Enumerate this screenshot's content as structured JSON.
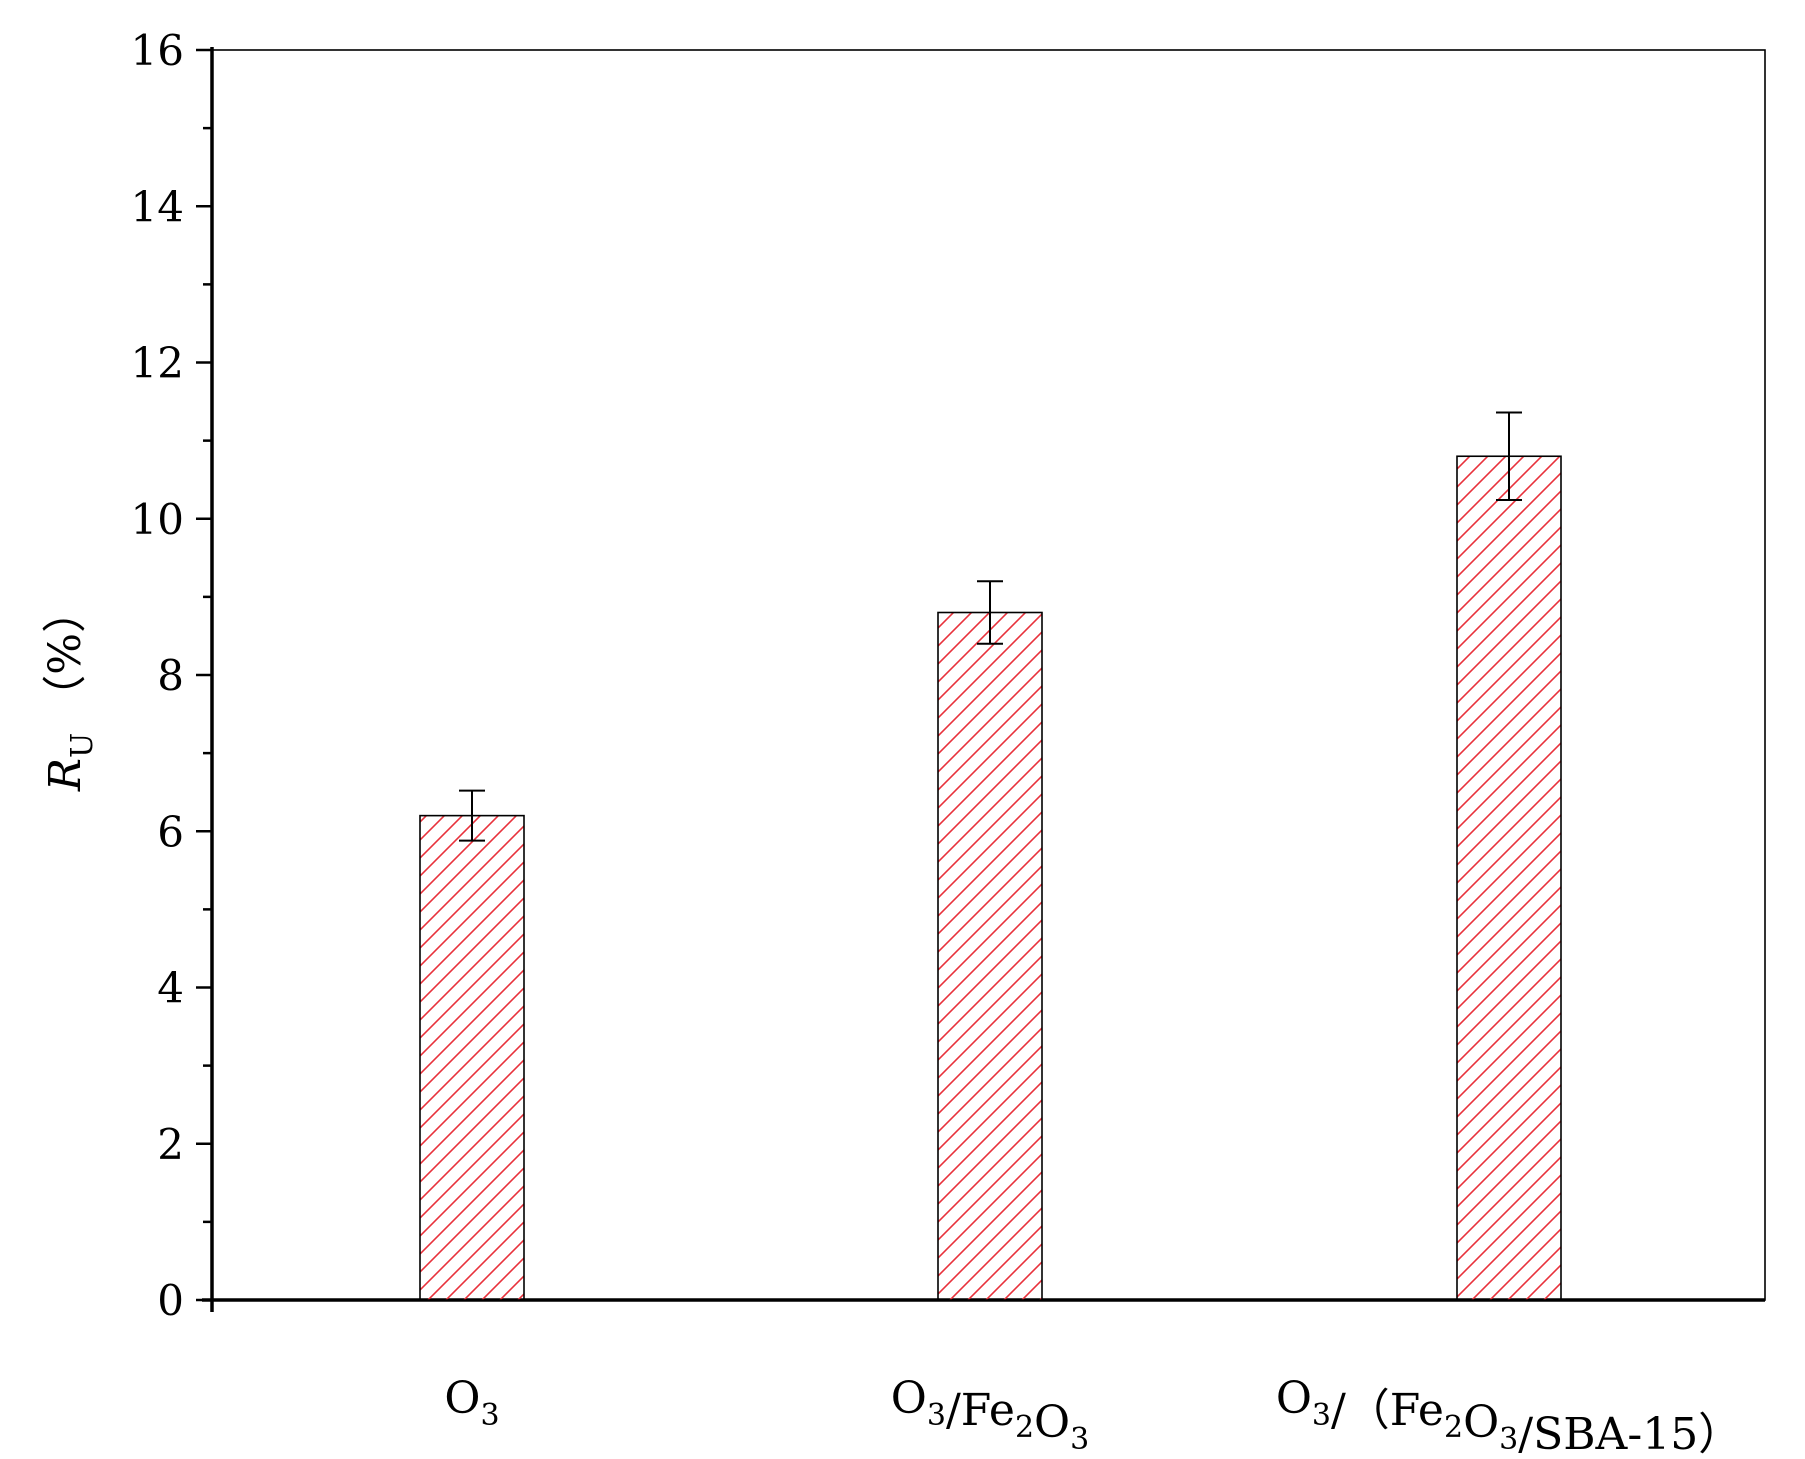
{
  "chart_data": {
    "type": "bar",
    "title": "",
    "xlabel": "",
    "ylabel": {
      "symbol": "R",
      "subscript": "U",
      "unit": "（%）"
    },
    "ylim": [
      0,
      16
    ],
    "y_major_ticks": [
      0,
      2,
      4,
      6,
      8,
      10,
      12,
      14,
      16
    ],
    "y_minor_step": 1,
    "grid": false,
    "legend": "none",
    "categories": [
      {
        "parts": [
          [
            "O",
            false
          ],
          [
            "3",
            true
          ]
        ]
      },
      {
        "parts": [
          [
            "O",
            false
          ],
          [
            "3",
            true
          ],
          [
            "/Fe",
            false
          ],
          [
            "2",
            true
          ],
          [
            "O",
            false
          ],
          [
            "3",
            true
          ]
        ]
      },
      {
        "parts": [
          [
            "O",
            false
          ],
          [
            "3",
            true
          ],
          [
            "/（Fe",
            false
          ],
          [
            "2",
            true
          ],
          [
            "O",
            false
          ],
          [
            "3",
            true
          ],
          [
            "/SBA-15）",
            false
          ]
        ]
      }
    ],
    "values": [
      6.2,
      8.8,
      10.8
    ],
    "error": [
      0.32,
      0.4,
      0.56
    ],
    "bar_color": "#e8323c",
    "bar_pattern": "diagonal-hatch"
  }
}
